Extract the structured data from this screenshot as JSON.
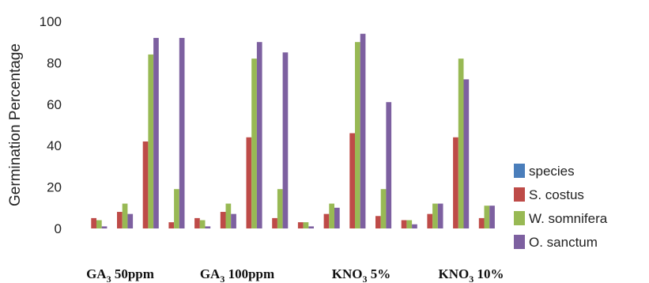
{
  "chart_data": {
    "type": "bar",
    "ylabel": "Germination Percentage",
    "ylim": [
      0,
      100
    ],
    "yticks": [
      0,
      20,
      40,
      60,
      80,
      100
    ],
    "grid": false,
    "legend_position": "right",
    "series": [
      {
        "name": "species",
        "color": "#4a7ebb"
      },
      {
        "name": "S. costus",
        "color": "#be4b48"
      },
      {
        "name": "W. somnifera",
        "color": "#98b954"
      },
      {
        "name": "O. sanctum",
        "color": "#7d60a0"
      }
    ],
    "categories": [
      {
        "base": "GA",
        "sub": "3",
        "rest": " 50ppm"
      },
      {
        "base": "GA",
        "sub": "3",
        "rest": " 100ppm"
      },
      {
        "base": "KNO",
        "sub": "3",
        "rest": " 5%"
      },
      {
        "base": "KNO",
        "sub": "3",
        "rest": " 10%"
      }
    ],
    "clusters": [
      {
        "values": [
          0,
          5,
          4,
          1
        ]
      },
      {
        "values": [
          0,
          8,
          12,
          7
        ]
      },
      {
        "values": [
          0,
          42,
          84,
          92
        ]
      },
      {
        "values": [
          0,
          3,
          19,
          92
        ]
      },
      {
        "values": [
          0,
          5,
          4,
          1
        ]
      },
      {
        "values": [
          0,
          8,
          12,
          7
        ]
      },
      {
        "values": [
          0,
          44,
          82,
          90
        ]
      },
      {
        "values": [
          0,
          5,
          19,
          85
        ]
      },
      {
        "values": [
          0,
          3,
          3,
          1
        ]
      },
      {
        "values": [
          0,
          7,
          12,
          10
        ]
      },
      {
        "values": [
          0,
          46,
          90,
          94
        ]
      },
      {
        "values": [
          0,
          6,
          19,
          61
        ]
      },
      {
        "values": [
          0,
          4,
          4,
          2
        ]
      },
      {
        "values": [
          0,
          7,
          12,
          12
        ]
      },
      {
        "values": [
          0,
          44,
          82,
          72
        ]
      },
      {
        "values": [
          0,
          5,
          11,
          11
        ]
      }
    ]
  }
}
